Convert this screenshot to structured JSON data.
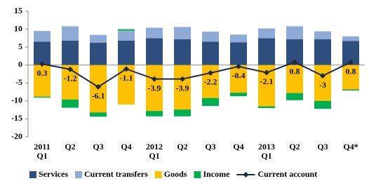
{
  "chart_data": {
    "type": "bar",
    "categories": [
      "2011\nQ1",
      "Q2",
      "Q3",
      "Q4",
      "2012\nQ1",
      "Q2",
      "Q3",
      "Q4",
      "2013\nQ1",
      "Q2",
      "Q3",
      "Q4*"
    ],
    "series": [
      {
        "name": "Services",
        "color": "#2f4f7f",
        "values": [
          6.5,
          6.8,
          6.2,
          6.8,
          7.5,
          7.2,
          6.5,
          6.3,
          7.5,
          7.2,
          7.2,
          6.7
        ]
      },
      {
        "name": "Current transfers",
        "color": "#8eaad6",
        "values": [
          3.0,
          4.0,
          2.2,
          2.8,
          2.9,
          3.4,
          2.8,
          2.2,
          2.7,
          3.6,
          2.2,
          1.3
        ]
      },
      {
        "name": "Goods",
        "color": "#ffc000",
        "values": [
          -8.8,
          -9.6,
          -13.2,
          -11.0,
          -12.8,
          -12.4,
          -9.2,
          -7.7,
          -11.5,
          -7.8,
          -10.0,
          -6.8
        ]
      },
      {
        "name": "Income",
        "color": "#00b050",
        "values": [
          -0.3,
          -2.3,
          -1.2,
          0.4,
          -1.5,
          -1.9,
          -2.2,
          -1.0,
          -0.5,
          -2.0,
          -2.2,
          -0.3
        ]
      },
      {
        "name": "Current account",
        "color": "#1c2a48",
        "type": "line",
        "values": [
          0.3,
          -1.2,
          -6.1,
          -1.1,
          -3.9,
          -3.9,
          -2.2,
          -0.4,
          -2.1,
          0.8,
          -3.0,
          0.8
        ]
      }
    ],
    "ylim": [
      -20,
      15
    ],
    "yticks": [
      -20,
      -15,
      -10,
      -5,
      0,
      5,
      10,
      15
    ]
  }
}
